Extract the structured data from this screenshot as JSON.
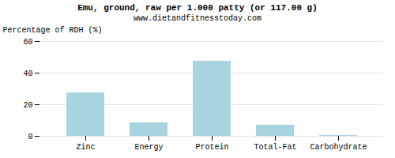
{
  "chart_data": {
    "type": "bar",
    "title": "Emu, ground, raw per 1.000 patty (or 117.00 g)",
    "subtitle": "www.dietandfitnesstoday.com",
    "categories": [
      "Zinc",
      "Energy",
      "Protein",
      "Total-Fat",
      "Carbohydrate"
    ],
    "values": [
      27.5,
      8.5,
      47.5,
      7.0,
      0.5
    ],
    "color": "#a8d4e0",
    "ylabel": "Percentage of RDH (%)",
    "ylim": [
      0,
      60
    ],
    "yticks": [
      0,
      20,
      40,
      60
    ],
    "grid": true
  }
}
